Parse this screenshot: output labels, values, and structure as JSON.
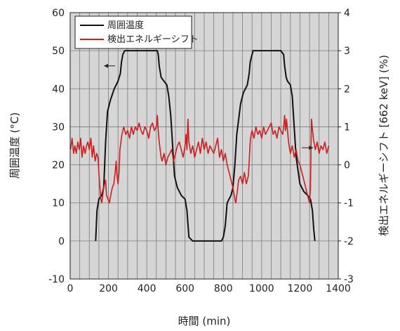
{
  "chart_data": {
    "type": "line",
    "xlabel": "時間 (min)",
    "ylabel_left": "周囲温度 (°C)",
    "ylabel_right": "検出エネルギーシフト [662 keV] (%)",
    "xlim": [
      0,
      1400
    ],
    "ylim_left": [
      -10,
      60
    ],
    "ylim_right": [
      -3,
      4
    ],
    "x_ticks": [
      "0",
      "200",
      "400",
      "600",
      "800",
      "1000",
      "1200",
      "1400"
    ],
    "y_left_ticks": [
      "-10",
      "0",
      "10",
      "20",
      "30",
      "40",
      "50",
      "60"
    ],
    "y_right_ticks": [
      "-3",
      "-2",
      "-1",
      "0",
      "1",
      "2",
      "3",
      "4"
    ],
    "x_gridlines": [
      0,
      50,
      100,
      150,
      200,
      250,
      300,
      350,
      400,
      450,
      500,
      550,
      600,
      650,
      700,
      750,
      800,
      850,
      900,
      950,
      1000,
      1050,
      1100,
      1150,
      1200,
      1250,
      1300,
      1350,
      1400
    ],
    "y_gridlines": [
      -10,
      0,
      10,
      20,
      30,
      40,
      50,
      60
    ],
    "grid": true,
    "legend_position": "top-left",
    "plot_background": "#d6d6d6",
    "series": [
      {
        "name": "周囲温度",
        "axis": "left",
        "color": "#111111",
        "x": [
          133,
          140,
          150,
          165,
          175,
          185,
          195,
          210,
          230,
          250,
          262,
          268,
          275,
          285,
          300,
          320,
          400,
          440,
          455,
          460,
          465,
          475,
          490,
          505,
          515,
          525,
          535,
          545,
          560,
          580,
          600,
          610,
          620,
          640,
          700,
          760,
          790,
          800,
          810,
          820,
          840,
          850,
          860,
          870,
          890,
          905,
          915,
          925,
          935,
          940,
          955,
          1000,
          1100,
          1115,
          1120,
          1128,
          1135,
          1150,
          1160,
          1170,
          1180,
          1200,
          1220,
          1240,
          1255,
          1265,
          1272,
          1278
        ],
        "y": [
          0,
          8,
          11,
          12,
          14,
          26,
          34,
          37,
          40,
          42,
          44,
          47,
          49,
          50,
          50,
          50,
          50,
          50,
          50,
          49,
          46,
          43,
          42,
          41,
          38,
          33,
          25,
          17,
          14,
          12,
          11,
          8,
          1,
          0,
          0,
          0,
          0,
          1,
          4,
          10,
          12,
          14,
          20,
          28,
          36,
          39,
          40,
          41,
          44,
          47,
          50,
          50,
          50,
          49,
          46,
          43,
          42,
          41,
          38,
          30,
          22,
          15,
          13,
          12,
          11,
          8,
          3,
          0
        ]
      },
      {
        "name": "検出エネルギーシフト",
        "axis": "right",
        "color": "#cc1f1f",
        "x": [
          2,
          10,
          18,
          25,
          32,
          40,
          48,
          55,
          62,
          70,
          78,
          85,
          92,
          100,
          108,
          115,
          122,
          130,
          138,
          145,
          150,
          155,
          160,
          165,
          170,
          175,
          180,
          185,
          190,
          198,
          205,
          212,
          220,
          228,
          235,
          240,
          245,
          250,
          255,
          260,
          265,
          270,
          275,
          280,
          290,
          300,
          310,
          320,
          330,
          340,
          350,
          360,
          370,
          380,
          390,
          400,
          410,
          420,
          430,
          440,
          450,
          455,
          460,
          465,
          470,
          475,
          480,
          490,
          500,
          510,
          520,
          530,
          540,
          550,
          560,
          570,
          580,
          590,
          600,
          605,
          610,
          615,
          620,
          630,
          640,
          650,
          660,
          670,
          680,
          690,
          700,
          710,
          720,
          730,
          740,
          750,
          760,
          770,
          780,
          790,
          800,
          810,
          820,
          830,
          840,
          850,
          860,
          865,
          870,
          875,
          880,
          890,
          900,
          910,
          920,
          930,
          935,
          940,
          945,
          950,
          960,
          970,
          980,
          990,
          1000,
          1010,
          1020,
          1030,
          1040,
          1050,
          1060,
          1070,
          1080,
          1090,
          1100,
          1110,
          1115,
          1120,
          1125,
          1130,
          1140,
          1150,
          1160,
          1170,
          1180,
          1190,
          1200,
          1210,
          1220,
          1230,
          1240,
          1250,
          1255,
          1260,
          1270,
          1280,
          1290,
          1300,
          1310,
          1320,
          1330,
          1340,
          1350
        ],
        "y": [
          0.4,
          0.7,
          0.3,
          0.5,
          0.3,
          0.6,
          0.4,
          0.7,
          0.2,
          0.5,
          0.3,
          0.5,
          0.6,
          0.4,
          0.7,
          0.2,
          0.5,
          0.1,
          0.3,
          0.2,
          -0.2,
          -0.6,
          -0.9,
          -1.0,
          -0.8,
          -0.6,
          -0.5,
          -0.4,
          -0.8,
          -0.9,
          -1.0,
          -0.8,
          -0.6,
          -0.5,
          -0.2,
          0.1,
          -0.3,
          -0.5,
          -0.2,
          0.4,
          0.6,
          0.8,
          0.9,
          1.0,
          0.8,
          0.9,
          0.7,
          1.0,
          0.8,
          1.0,
          0.9,
          1.1,
          0.9,
          0.8,
          1.0,
          0.9,
          0.7,
          1.0,
          1.1,
          0.9,
          1.0,
          1.3,
          0.9,
          0.6,
          0.4,
          0.2,
          0.1,
          0.3,
          0.0,
          0.2,
          0.3,
          0.4,
          0.1,
          0.3,
          0.5,
          0.6,
          0.4,
          0.2,
          0.5,
          0.8,
          0.4,
          1.2,
          0.6,
          0.3,
          0.5,
          0.2,
          0.4,
          0.6,
          0.3,
          0.7,
          0.4,
          0.6,
          0.3,
          0.5,
          0.4,
          0.3,
          0.5,
          0.7,
          0.2,
          0.4,
          0.1,
          0.3,
          0.0,
          -0.2,
          -0.4,
          -0.6,
          -0.9,
          -1.0,
          -0.8,
          -0.6,
          -0.4,
          -0.3,
          -0.5,
          -0.2,
          -0.5,
          -0.3,
          0.1,
          0.6,
          0.8,
          0.9,
          0.7,
          1.0,
          0.8,
          0.9,
          0.7,
          1.0,
          0.8,
          0.9,
          1.0,
          1.1,
          0.8,
          0.9,
          0.7,
          1.0,
          0.9,
          0.8,
          1.0,
          1.3,
          0.9,
          1.2,
          0.6,
          0.3,
          0.5,
          0.2,
          0.4,
          0.1,
          0.0,
          -0.2,
          -0.4,
          -0.6,
          -0.8,
          -1.0,
          -0.6,
          1.2,
          0.7,
          0.4,
          0.6,
          0.3,
          0.5,
          0.4,
          0.6,
          0.3,
          0.5
        ]
      }
    ],
    "annotations": [
      {
        "type": "arrow",
        "points_to": "left-axis",
        "x": 235,
        "y": 46
      },
      {
        "type": "arrow",
        "points_to": "right-axis",
        "x": 1210,
        "y": 24.5
      }
    ]
  }
}
